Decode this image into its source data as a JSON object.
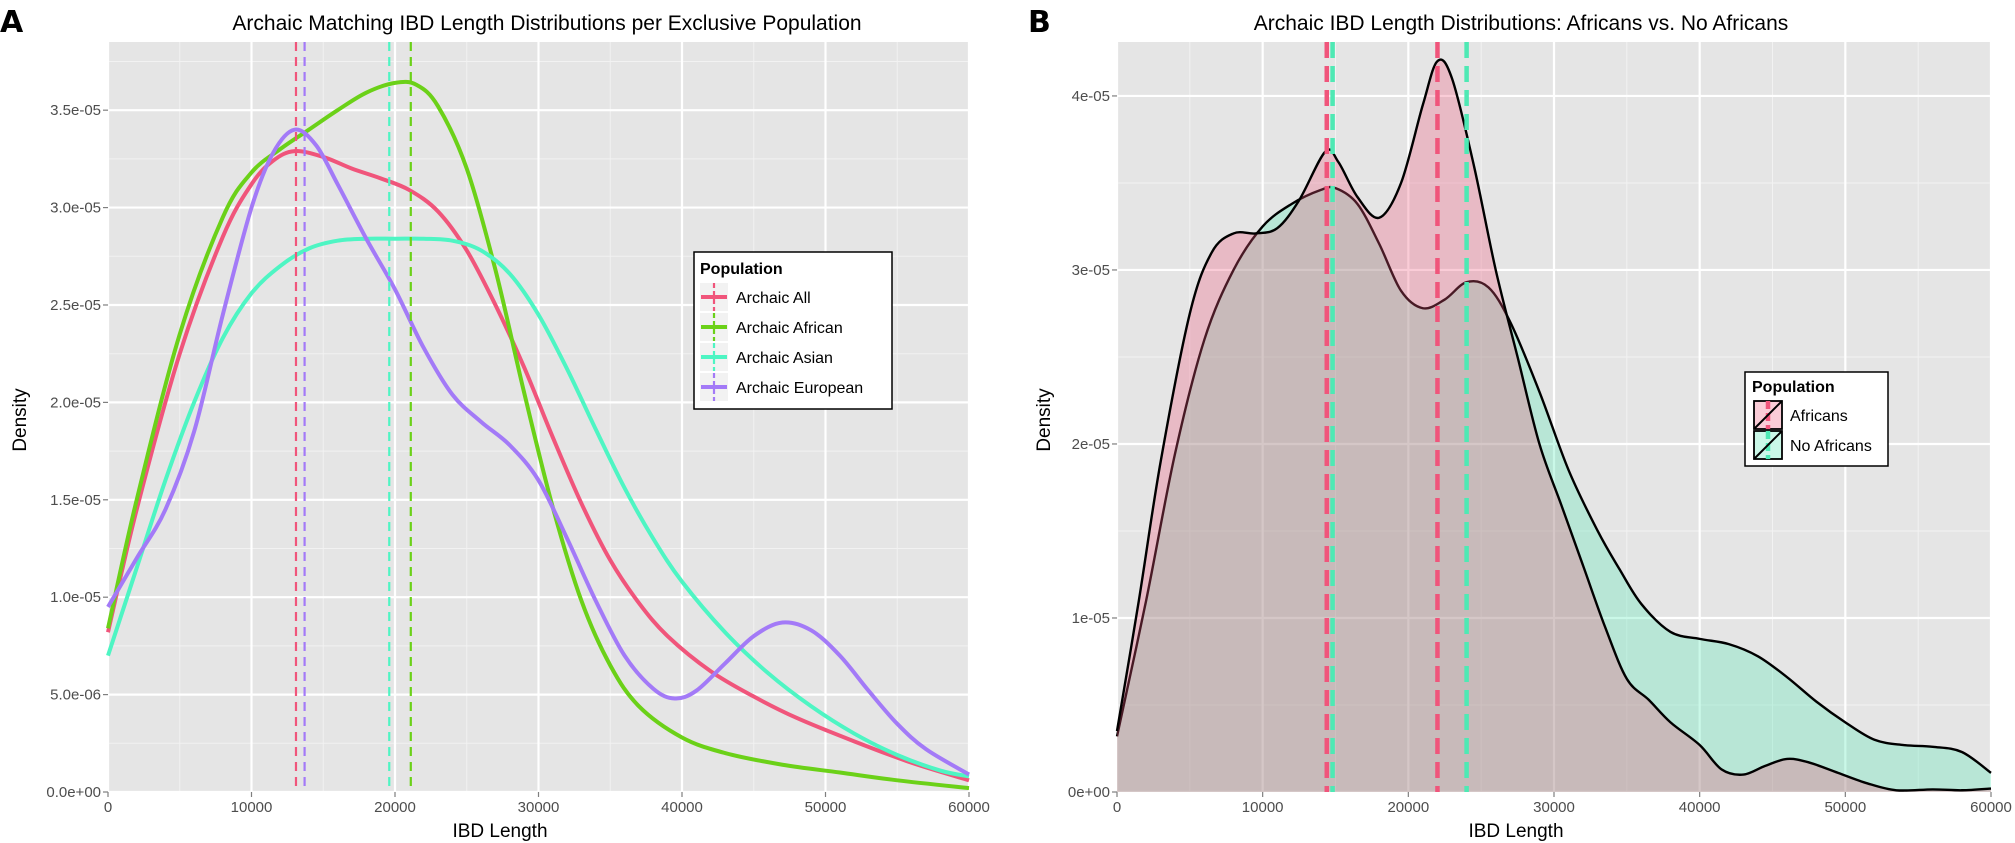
{
  "chart_data": [
    {
      "panel_label": "A",
      "type": "line",
      "title": "Archaic Matching IBD Length Distributions per Exclusive Population",
      "xlabel": "IBD Length",
      "ylabel": "Density",
      "xlim": [
        0,
        60000
      ],
      "ylim": [
        0,
        3.85e-05
      ],
      "x_ticks": [
        0,
        10000,
        20000,
        30000,
        40000,
        50000,
        60000
      ],
      "x_tick_labels": [
        "0",
        "10000",
        "20000",
        "30000",
        "40000",
        "50000",
        "60000"
      ],
      "y_ticks": [
        0,
        5e-06,
        1e-05,
        1.5e-05,
        2e-05,
        2.5e-05,
        3e-05,
        3.5e-05
      ],
      "y_tick_labels": [
        "0.0e+00",
        "5.0e-06",
        "1.0e-05",
        "1.5e-05",
        "2.0e-05",
        "2.5e-05",
        "3.0e-05",
        "3.5e-05"
      ],
      "grid": true,
      "legend": {
        "title": "Population",
        "position": "right"
      },
      "series": [
        {
          "name": "Archaic All",
          "color": "#f0557b",
          "mean_line": 13100,
          "points": [
            [
              0,
              8.2e-06
            ],
            [
              2000,
              1.45e-05
            ],
            [
              5000,
              2.25e-05
            ],
            [
              8000,
              2.85e-05
            ],
            [
              10000,
              3.12e-05
            ],
            [
              11500,
              3.24e-05
            ],
            [
              13000,
              3.29e-05
            ],
            [
              15000,
              3.26e-05
            ],
            [
              17000,
              3.2e-05
            ],
            [
              19000,
              3.15e-05
            ],
            [
              21000,
              3.09e-05
            ],
            [
              23000,
              2.98e-05
            ],
            [
              25000,
              2.78e-05
            ],
            [
              27000,
              2.5e-05
            ],
            [
              29000,
              2.18e-05
            ],
            [
              31000,
              1.82e-05
            ],
            [
              33000,
              1.48e-05
            ],
            [
              35000,
              1.19e-05
            ],
            [
              37000,
              9.7e-06
            ],
            [
              39000,
              8e-06
            ],
            [
              42000,
              6.2e-06
            ],
            [
              45000,
              4.9e-06
            ],
            [
              48000,
              3.8e-06
            ],
            [
              52000,
              2.6e-06
            ],
            [
              56000,
              1.5e-06
            ],
            [
              60000,
              6e-07
            ]
          ]
        },
        {
          "name": "Archaic African",
          "color": "#6bd118",
          "mean_line": 21100,
          "points": [
            [
              0,
              8.4e-06
            ],
            [
              2000,
              1.5e-05
            ],
            [
              5000,
              2.35e-05
            ],
            [
              8000,
              2.95e-05
            ],
            [
              10000,
              3.18e-05
            ],
            [
              12000,
              3.3e-05
            ],
            [
              14000,
              3.4e-05
            ],
            [
              16000,
              3.5e-05
            ],
            [
              18000,
              3.59e-05
            ],
            [
              20000,
              3.64e-05
            ],
            [
              21500,
              3.63e-05
            ],
            [
              23000,
              3.52e-05
            ],
            [
              25000,
              3.2e-05
            ],
            [
              27000,
              2.68e-05
            ],
            [
              29000,
              2.05e-05
            ],
            [
              31000,
              1.46e-05
            ],
            [
              33000,
              9.8e-06
            ],
            [
              35000,
              6.5e-06
            ],
            [
              37000,
              4.4e-06
            ],
            [
              40000,
              2.8e-06
            ],
            [
              43000,
              2e-06
            ],
            [
              47000,
              1.4e-06
            ],
            [
              51000,
              1e-06
            ],
            [
              55000,
              6e-07
            ],
            [
              60000,
              2e-07
            ]
          ]
        },
        {
          "name": "Archaic Asian",
          "color": "#4ef5c3",
          "mean_line": 19600,
          "points": [
            [
              0,
              7e-06
            ],
            [
              2000,
              1.15e-05
            ],
            [
              4000,
              1.6e-05
            ],
            [
              6000,
              2e-05
            ],
            [
              8000,
              2.33e-05
            ],
            [
              10000,
              2.56e-05
            ],
            [
              12000,
              2.7e-05
            ],
            [
              14000,
              2.79e-05
            ],
            [
              16000,
              2.83e-05
            ],
            [
              18000,
              2.84e-05
            ],
            [
              20000,
              2.84e-05
            ],
            [
              22000,
              2.84e-05
            ],
            [
              24000,
              2.83e-05
            ],
            [
              26000,
              2.78e-05
            ],
            [
              28000,
              2.66e-05
            ],
            [
              30000,
              2.45e-05
            ],
            [
              32000,
              2.17e-05
            ],
            [
              34000,
              1.86e-05
            ],
            [
              36000,
              1.56e-05
            ],
            [
              38000,
              1.3e-05
            ],
            [
              40000,
              1.08e-05
            ],
            [
              43000,
              8.2e-06
            ],
            [
              46000,
              6.1e-06
            ],
            [
              49000,
              4.4e-06
            ],
            [
              52000,
              3e-06
            ],
            [
              55000,
              1.9e-06
            ],
            [
              58000,
              1.1e-06
            ],
            [
              60000,
              8e-07
            ]
          ]
        },
        {
          "name": "Archaic European",
          "color": "#a37af7",
          "mean_line": 13700,
          "points": [
            [
              0,
              9.5e-06
            ],
            [
              2000,
              1.2e-05
            ],
            [
              4000,
              1.45e-05
            ],
            [
              6000,
              1.85e-05
            ],
            [
              8000,
              2.45e-05
            ],
            [
              10000,
              3e-05
            ],
            [
              11500,
              3.28e-05
            ],
            [
              13000,
              3.4e-05
            ],
            [
              14500,
              3.32e-05
            ],
            [
              16000,
              3.12e-05
            ],
            [
              18000,
              2.84e-05
            ],
            [
              20000,
              2.58e-05
            ],
            [
              22000,
              2.28e-05
            ],
            [
              24000,
              2.04e-05
            ],
            [
              26000,
              1.9e-05
            ],
            [
              28000,
              1.78e-05
            ],
            [
              30000,
              1.6e-05
            ],
            [
              32000,
              1.3e-05
            ],
            [
              34000,
              9.8e-06
            ],
            [
              36000,
              7e-06
            ],
            [
              38000,
              5.3e-06
            ],
            [
              39500,
              4.8e-06
            ],
            [
              41000,
              5.2e-06
            ],
            [
              43000,
              6.6e-06
            ],
            [
              45000,
              8e-06
            ],
            [
              47000,
              8.7e-06
            ],
            [
              49000,
              8.3e-06
            ],
            [
              51000,
              7e-06
            ],
            [
              53000,
              5.2e-06
            ],
            [
              55000,
              3.5e-06
            ],
            [
              57000,
              2.2e-06
            ],
            [
              60000,
              9e-07
            ]
          ]
        }
      ]
    },
    {
      "panel_label": "B",
      "type": "area",
      "title": "Archaic IBD Length Distributions: Africans vs. No Africans",
      "xlabel": "IBD Length",
      "ylabel": "Density",
      "xlim": [
        0,
        60000
      ],
      "ylim": [
        0,
        4.31e-05
      ],
      "x_ticks": [
        0,
        10000,
        20000,
        30000,
        40000,
        50000,
        60000
      ],
      "x_tick_labels": [
        "0",
        "10000",
        "20000",
        "30000",
        "40000",
        "50000",
        "60000"
      ],
      "y_ticks": [
        0,
        1e-05,
        2e-05,
        3e-05,
        4e-05
      ],
      "y_tick_labels": [
        "0e+00",
        "1e-05",
        "2e-05",
        "3e-05",
        "4e-05"
      ],
      "grid": true,
      "legend": {
        "title": "Population",
        "position": "right"
      },
      "series": [
        {
          "name": "No Africans",
          "color": "#4ee9b4",
          "fill": "rgba(78,233,180,0.30)",
          "mean_lines": [
            14800,
            24000
          ],
          "points": [
            [
              0,
              3.2e-06
            ],
            [
              2000,
              1.1e-05
            ],
            [
              4000,
              1.95e-05
            ],
            [
              6000,
              2.6e-05
            ],
            [
              8000,
              3e-05
            ],
            [
              10000,
              3.25e-05
            ],
            [
              12000,
              3.38e-05
            ],
            [
              14000,
              3.46e-05
            ],
            [
              15000,
              3.47e-05
            ],
            [
              16500,
              3.38e-05
            ],
            [
              18000,
              3.15e-05
            ],
            [
              19500,
              2.88e-05
            ],
            [
              21000,
              2.78e-05
            ],
            [
              22500,
              2.83e-05
            ],
            [
              24000,
              2.93e-05
            ],
            [
              25500,
              2.9e-05
            ],
            [
              27000,
              2.7e-05
            ],
            [
              29000,
              2.3e-05
            ],
            [
              31000,
              1.85e-05
            ],
            [
              33000,
              1.5e-05
            ],
            [
              34500,
              1.28e-05
            ],
            [
              36000,
              1.08e-05
            ],
            [
              38000,
              9.2e-06
            ],
            [
              40000,
              8.8e-06
            ],
            [
              42000,
              8.5e-06
            ],
            [
              44000,
              7.8e-06
            ],
            [
              46000,
              6.6e-06
            ],
            [
              48000,
              5.2e-06
            ],
            [
              50000,
              4e-06
            ],
            [
              52000,
              3e-06
            ],
            [
              54000,
              2.7e-06
            ],
            [
              56000,
              2.6e-06
            ],
            [
              58000,
              2.3e-06
            ],
            [
              60000,
              1.1e-06
            ]
          ]
        },
        {
          "name": "Africans",
          "color": "#f0557b",
          "fill": "rgba(240,85,123,0.30)",
          "mean_lines": [
            14400,
            22000
          ],
          "points": [
            [
              0,
              3.5e-06
            ],
            [
              1500,
              1.1e-05
            ],
            [
              3000,
              1.9e-05
            ],
            [
              5000,
              2.75e-05
            ],
            [
              6500,
              3.1e-05
            ],
            [
              8000,
              3.21e-05
            ],
            [
              9500,
              3.21e-05
            ],
            [
              11000,
              3.24e-05
            ],
            [
              12500,
              3.4e-05
            ],
            [
              14300,
              3.68e-05
            ],
            [
              15200,
              3.62e-05
            ],
            [
              16500,
              3.42e-05
            ],
            [
              18000,
              3.3e-05
            ],
            [
              19500,
              3.5e-05
            ],
            [
              21000,
              3.95e-05
            ],
            [
              22000,
              4.2e-05
            ],
            [
              23000,
              4.1e-05
            ],
            [
              24500,
              3.6e-05
            ],
            [
              26000,
              3e-05
            ],
            [
              27500,
              2.5e-05
            ],
            [
              29000,
              2e-05
            ],
            [
              30500,
              1.65e-05
            ],
            [
              32000,
              1.3e-05
            ],
            [
              33500,
              9.5e-06
            ],
            [
              35000,
              6.5e-06
            ],
            [
              36500,
              5.3e-06
            ],
            [
              38000,
              4e-06
            ],
            [
              40000,
              2.7e-06
            ],
            [
              41500,
              1.3e-06
            ],
            [
              43000,
              1e-06
            ],
            [
              44500,
              1.5e-06
            ],
            [
              46000,
              1.9e-06
            ],
            [
              47500,
              1.7e-06
            ],
            [
              49500,
              1.1e-06
            ],
            [
              51500,
              5e-07
            ],
            [
              53500,
              1e-07
            ],
            [
              56000,
              1.5e-07
            ],
            [
              58000,
              1e-07
            ],
            [
              60000,
              2e-07
            ]
          ]
        }
      ]
    }
  ]
}
